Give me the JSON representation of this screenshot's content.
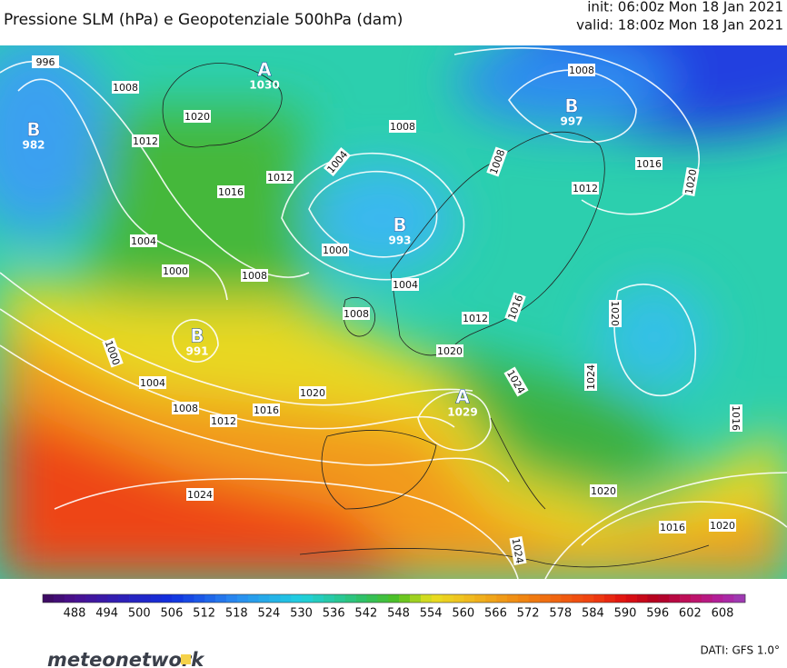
{
  "header": {
    "title": "Pressione SLM (hPa) e Geopotenziale 500hPa (dam)",
    "init": "init: 06:00z Mon 18 Jan 2021",
    "valid": "valid: 18:00z Mon 18 Jan 2021"
  },
  "isobar_labels": [
    996,
    1008,
    1020,
    1012,
    1016,
    1012,
    1004,
    1008,
    1008,
    1008,
    1012,
    1016,
    1020,
    1004,
    1000,
    1008,
    1000,
    1004,
    1008,
    1012,
    1016,
    1020,
    1020,
    1024,
    1024,
    1000,
    1004,
    1008,
    1012,
    1016,
    1020,
    1016,
    1024,
    1020,
    1016,
    1020,
    1024
  ],
  "pressure_centers": [
    {
      "symbol": "B",
      "value": 982
    },
    {
      "symbol": "A",
      "value": 1030
    },
    {
      "symbol": "B",
      "value": 997
    },
    {
      "symbol": "B",
      "value": 993
    },
    {
      "symbol": "B",
      "value": 991
    },
    {
      "symbol": "A",
      "value": 1029
    }
  ],
  "colorbar": {
    "ticks": [
      488,
      494,
      500,
      506,
      512,
      518,
      524,
      530,
      536,
      542,
      548,
      554,
      560,
      566,
      572,
      578,
      584,
      590,
      596,
      602,
      608
    ]
  },
  "footer": {
    "logo": "meteonetwork",
    "source": "DATI: GFS 1.0°"
  }
}
